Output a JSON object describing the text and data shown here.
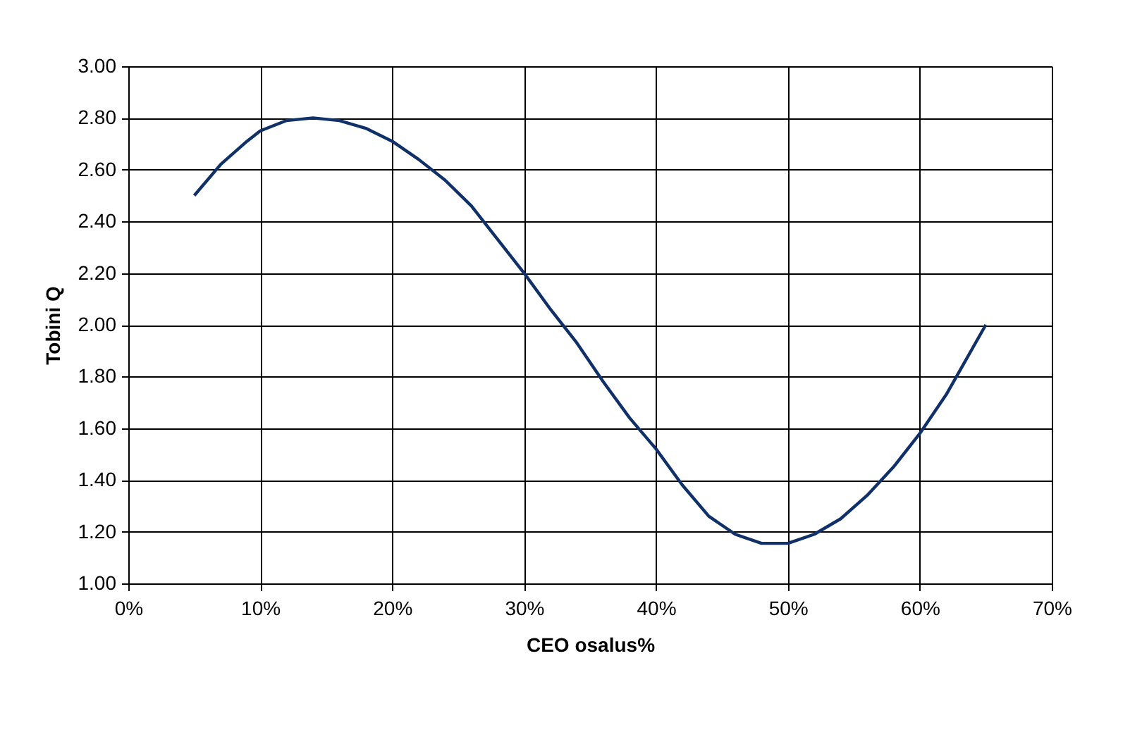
{
  "chart_data": {
    "type": "line",
    "xlabel": "CEO osalus%",
    "ylabel": "Tobini Q",
    "x": [
      5,
      7,
      9,
      10,
      12,
      14,
      16,
      18,
      20,
      22,
      24,
      26,
      28,
      30,
      32,
      34,
      36,
      38,
      40,
      42,
      44,
      46,
      48,
      50,
      52,
      54,
      56,
      58,
      60,
      62,
      65
    ],
    "series": [
      {
        "color": "#10306a",
        "values": [
          2.5,
          2.62,
          2.71,
          2.75,
          2.79,
          2.8,
          2.79,
          2.76,
          2.71,
          2.64,
          2.56,
          2.46,
          2.33,
          2.2,
          2.06,
          1.93,
          1.78,
          1.64,
          1.52,
          1.38,
          1.26,
          1.19,
          1.155,
          1.155,
          1.19,
          1.25,
          1.34,
          1.45,
          1.58,
          1.73,
          2.0
        ]
      }
    ],
    "xlim": [
      0,
      70
    ],
    "xticks": [
      {
        "value": 0,
        "label": "0%"
      },
      {
        "value": 10,
        "label": "10%"
      },
      {
        "value": 20,
        "label": "20%"
      },
      {
        "value": 30,
        "label": "30%"
      },
      {
        "value": 40,
        "label": "40%"
      },
      {
        "value": 50,
        "label": "50%"
      },
      {
        "value": 60,
        "label": "60%"
      },
      {
        "value": 70,
        "label": "70%"
      }
    ],
    "ylim": [
      1,
      3
    ],
    "yticks": [
      {
        "value": 1,
        "label": "1.00"
      },
      {
        "value": 1.2,
        "label": "1.20"
      },
      {
        "value": 1.4,
        "label": "1.40"
      },
      {
        "value": 1.6,
        "label": "1.60"
      },
      {
        "value": 1.8,
        "label": "1.80"
      },
      {
        "value": 2,
        "label": "2.00"
      },
      {
        "value": 2.2,
        "label": "2.20"
      },
      {
        "value": 2.4,
        "label": "2.40"
      },
      {
        "value": 2.6,
        "label": "2.60"
      },
      {
        "value": 2.8,
        "label": "2.80"
      },
      {
        "value": 3,
        "label": "3.00"
      }
    ],
    "grid": true,
    "marker": "none",
    "line_style": "solid"
  }
}
